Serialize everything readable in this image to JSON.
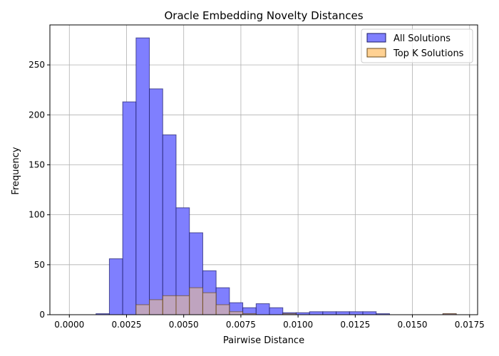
{
  "chart_data": {
    "type": "bar",
    "title": "Oracle Embedding Novelty Distances",
    "xlabel": "Pairwise Distance",
    "ylabel": "Frequency",
    "xlim": [
      -0.00085,
      0.01785
    ],
    "ylim": [
      0,
      290
    ],
    "xticks": [
      0.0,
      0.0025,
      0.005,
      0.0075,
      0.01,
      0.0125,
      0.015,
      0.0175
    ],
    "xtick_labels": [
      "0.0000",
      "0.0025",
      "0.0050",
      "0.0075",
      "0.0100",
      "0.0125",
      "0.0150",
      "0.0175"
    ],
    "yticks": [
      0,
      50,
      100,
      150,
      200,
      250
    ],
    "ytick_labels": [
      "0",
      "50",
      "100",
      "150",
      "200",
      "250"
    ],
    "grid": true,
    "legend_position": "top-right",
    "bin_edges": [
      0.0,
      0.0005833,
      0.0011667,
      0.00175,
      0.0023333,
      0.0029167,
      0.0035,
      0.0040833,
      0.0046667,
      0.00525,
      0.0058333,
      0.0064167,
      0.007,
      0.0075833,
      0.0081667,
      0.00875,
      0.0093333,
      0.0099167,
      0.0105,
      0.0110833,
      0.0116667,
      0.01225,
      0.0128333,
      0.0134167,
      0.014,
      0.0145833,
      0.0151667,
      0.01575,
      0.0163333,
      0.0169167
    ],
    "series": [
      {
        "name": "All Solutions",
        "color": "#7f7ffe",
        "edge_color": "#1a1a66",
        "counts": [
          0,
          0,
          1,
          56,
          213,
          277,
          226,
          180,
          107,
          82,
          44,
          27,
          12,
          7,
          11,
          7,
          2,
          2,
          3,
          3,
          3,
          3,
          3,
          1,
          0,
          0,
          0,
          0,
          1
        ]
      },
      {
        "name": "Top K Solutions",
        "color": "#ffc97f",
        "edge_color": "#6b4a1a",
        "counts": [
          0,
          0,
          0,
          0,
          0,
          10,
          15,
          19,
          19,
          27,
          22,
          10,
          3,
          1,
          0,
          0,
          1,
          0,
          0,
          0,
          0,
          0,
          0,
          0,
          0,
          0,
          0,
          0,
          1
        ]
      }
    ]
  }
}
